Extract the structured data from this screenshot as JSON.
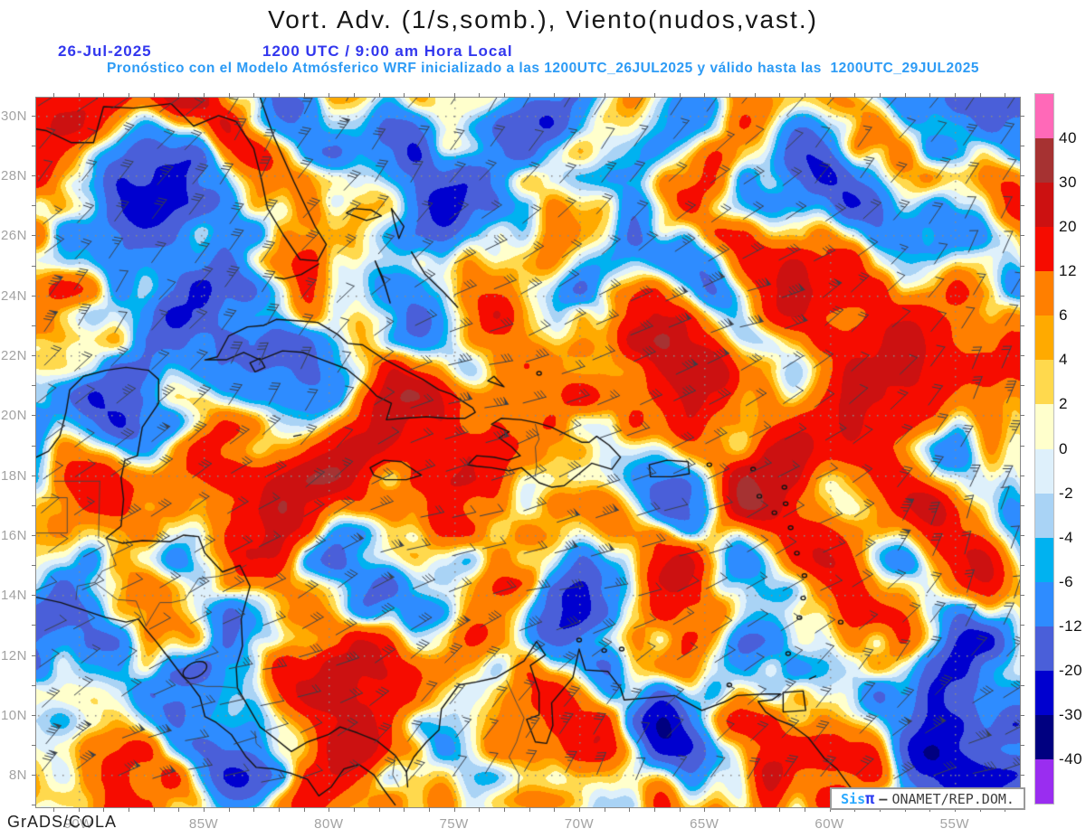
{
  "header": {
    "title": "Vort. Adv. (1/s,somb.), Viento(nudos,vast.)",
    "date": "26-Jul-2025",
    "time": "1200 UTC / 9:00 am Hora Local",
    "subtitle": "Pronóstico con el Modelo Atmósferico WRF inicializado a las 1200UTC_26JUL2025 y válido hasta las  1200UTC_29JUL2025"
  },
  "footer": {
    "credit": "GrADS/COLA"
  },
  "watermark": {
    "sis": "Sis",
    "pi": "π",
    "separator": "–",
    "org": "ONAMET/REP.DOM."
  },
  "colors": {
    "title": "#161616",
    "header_blue": "#3237ee",
    "subtitle_blue": "#2d9bf5",
    "axis_label_gray": "#a3a3a3",
    "coastline": "#141414",
    "border_line": "#444444",
    "wind_barb": "#39404a",
    "grid_dot": "#8a8a8a",
    "watermark_sis": "#2aa9ff",
    "watermark_pi": "#2b3cf0",
    "watermark_text": "#3f3f3f"
  },
  "chart_data": {
    "type": "heatmap",
    "title": "Vort. Adv. (1/s,somb.), Viento(nudos,vast.)",
    "shaded_field": "Vorticity advection (1/s, sombreado)",
    "vector_field": "Viento (nudos, barbas de viento)",
    "model": "WRF",
    "initialized": "1200UTC_26JUL2025",
    "valid_until": "1200UTC_29JUL2025",
    "region": "Caribbean / Gulf of Mexico / Central America / Northern South America",
    "x_tick_labels": [
      "90W",
      "85W",
      "80W",
      "75W",
      "70W",
      "65W",
      "60W",
      "55W"
    ],
    "y_tick_labels": [
      "30N",
      "28N",
      "26N",
      "24N",
      "22N",
      "20N",
      "18N",
      "16N",
      "14N",
      "12N",
      "10N",
      "8N"
    ],
    "lon_range_deg_west": [
      91.7,
      52.4
    ],
    "lat_range_deg_north": [
      6.9,
      30.6
    ],
    "grid": {
      "lat_step_deg": 2,
      "lon_step_deg": 5,
      "gridlines": "dotted"
    },
    "colorbar": {
      "position": "right",
      "levels_ascending": [
        -40,
        -30,
        -20,
        -12,
        -6,
        -4,
        -2,
        0,
        2,
        4,
        6,
        12,
        20,
        30,
        40
      ],
      "tick_labels_top_to_bottom": [
        "40",
        "30",
        "20",
        "12",
        "6",
        "4",
        "2",
        "0",
        "-2",
        "-4",
        "-6",
        "-12",
        "-20",
        "-30",
        "-40"
      ],
      "colors_low_to_high": [
        "#9a2df0",
        "#000080",
        "#0000cf",
        "#4a5fd9",
        "#2e8cff",
        "#00b2f0",
        "#a9d3f5",
        "#def0fb",
        "#ffffcc",
        "#ffd94d",
        "#ffaa00",
        "#ff7f00",
        "#f60c00",
        "#cc1111",
        "#a63232",
        "#ff69b8"
      ]
    }
  }
}
